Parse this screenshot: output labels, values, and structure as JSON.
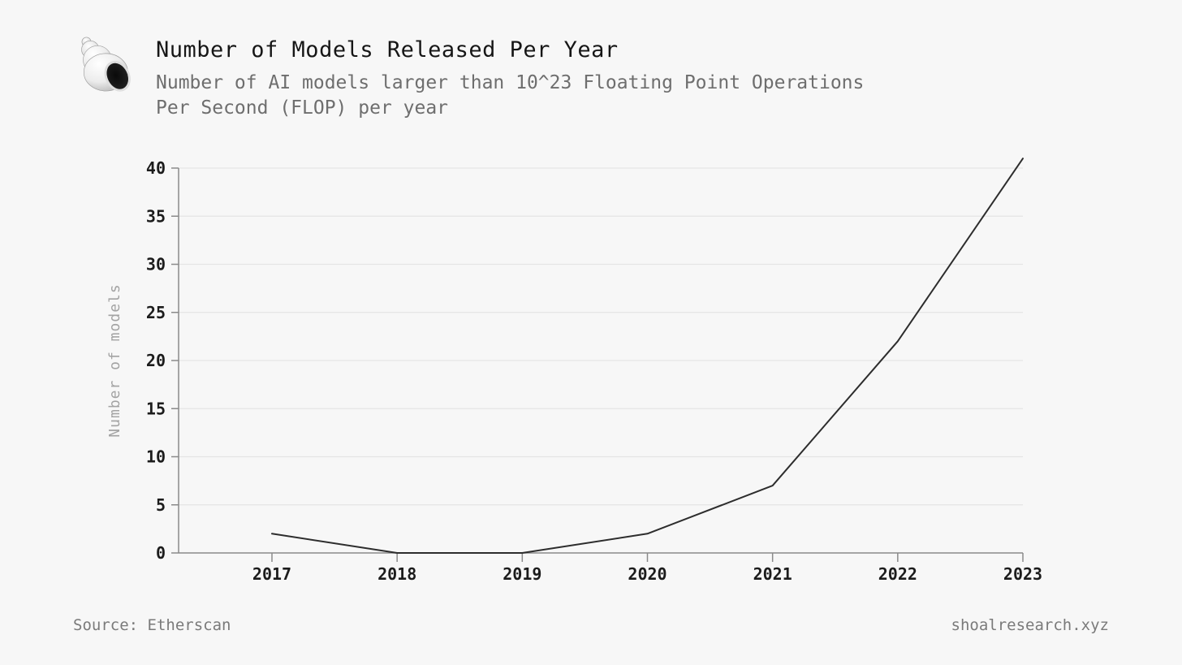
{
  "header": {
    "logo": "snail-shell-logo"
  },
  "chart_data": {
    "type": "line",
    "title": "Number of Models Released Per Year",
    "subtitle_lines": [
      "Number of AI models larger than 10^23 Floating Point Operations",
      "Per Second (FLOP) per year"
    ],
    "categories": [
      "2017",
      "2018",
      "2019",
      "2020",
      "2021",
      "2022",
      "2023"
    ],
    "values": [
      2,
      0,
      0,
      2,
      7,
      22,
      41
    ],
    "xlabel": "",
    "ylabel": "Number of models",
    "yticks": [
      0,
      5,
      10,
      15,
      20,
      25,
      30,
      35,
      40
    ],
    "ylim": [
      0,
      42
    ],
    "grid": true,
    "legend": false
  },
  "footer": {
    "source": "Source: Etherscan",
    "site": "shoalresearch.xyz"
  },
  "colors": {
    "background": "#f7f7f7",
    "title": "#161616",
    "subtitle": "#6e6e6e",
    "line": "#2d2d2d",
    "grid": "#e5e5e5",
    "axis": "#8a8a8a",
    "tick_label": "#1c1c1c",
    "axis_title": "#a3a3a3",
    "footer": "#7a7a7a"
  }
}
